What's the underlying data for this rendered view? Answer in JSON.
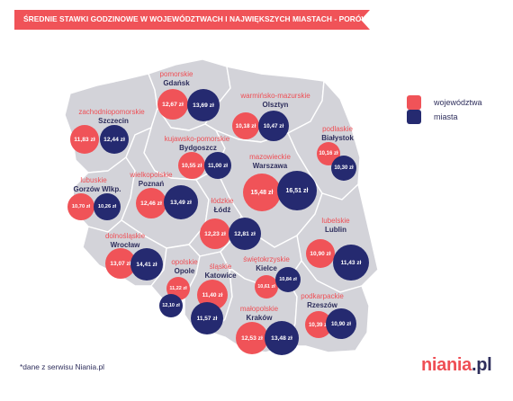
{
  "title": "ŚREDNIE STAWKI GODZINOWE W WOJEWÓDZTWACH I NAJWIĘKSZYCH MIASTACH - PORÓWNANIE*",
  "legend": {
    "regions_label": "województwa",
    "cities_label": "miasta",
    "regions_color": "#f05358",
    "cities_color": "#252a70"
  },
  "footnote": "*dane z serwisu Niania.pl",
  "logo": {
    "main": "niania",
    "suffix": ".pl"
  },
  "regions": [
    {
      "region": "pomorskie",
      "city": "Gdańsk",
      "region_rate": "12,67 zł",
      "city_rate": "13,69 zł"
    },
    {
      "region": "warmińsko-mazurskie",
      "city": "Olsztyn",
      "region_rate": "10,18 zł",
      "city_rate": "10,47 zł"
    },
    {
      "region": "zachodniopomorskie",
      "city": "Szczecin",
      "region_rate": "11,83 zł",
      "city_rate": "12,44 zł"
    },
    {
      "region": "kujawsko-pomorskie",
      "city": "Bydgoszcz",
      "region_rate": "10,55 zł",
      "city_rate": "11,00 zł"
    },
    {
      "region": "podlaskie",
      "city": "Białystok",
      "region_rate": "10,16 zł",
      "city_rate": "10,30 zł"
    },
    {
      "region": "mazowieckie",
      "city": "Warszawa",
      "region_rate": "15,48 zł",
      "city_rate": "16,51 zł"
    },
    {
      "region": "lubuskie",
      "city": "Gorzów Wlkp.",
      "region_rate": "10,70 zł",
      "city_rate": "10,26 zł"
    },
    {
      "region": "wielkopolskie",
      "city": "Poznań",
      "region_rate": "12,46 zł",
      "city_rate": "13,49 zł"
    },
    {
      "region": "łódzkie",
      "city": "Łódź",
      "region_rate": "12,23 zł",
      "city_rate": "12,81 zł"
    },
    {
      "region": "lubelskie",
      "city": "Lublin",
      "region_rate": "10,90 zł",
      "city_rate": "11,43 zł"
    },
    {
      "region": "dolnośląskie",
      "city": "Wrocław",
      "region_rate": "13,07 zł",
      "city_rate": "14,41 zł"
    },
    {
      "region": "opolskie",
      "city": "Opole",
      "region_rate": "11,22 zł",
      "city_rate": "12,10 zł"
    },
    {
      "region": "śląskie",
      "city": "Katowice",
      "region_rate": "11,40 zł",
      "city_rate": "11,57 zł"
    },
    {
      "region": "świętokrzyskie",
      "city": "Kielce",
      "region_rate": "10,61 zł",
      "city_rate": "10,84 zł"
    },
    {
      "region": "podkarpackie",
      "city": "Rzeszów",
      "region_rate": "10,39 zł",
      "city_rate": "10,90 zł"
    },
    {
      "region": "małopolskie",
      "city": "Kraków",
      "region_rate": "12,53 zł",
      "city_rate": "13,48 zł"
    }
  ]
}
